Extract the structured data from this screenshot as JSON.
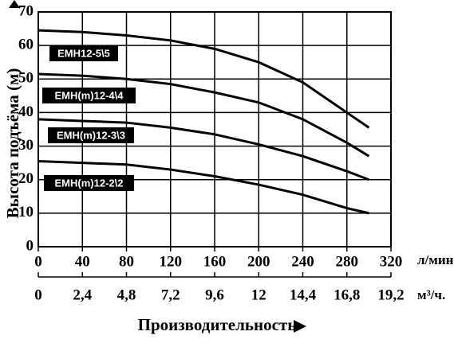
{
  "chart_data": {
    "type": "line",
    "ylabel": "Высота подъёма (м)",
    "xlabel": "Производительность",
    "x_unit": "л/мин.",
    "x2_unit": "м³/ч.",
    "x": [
      0,
      40,
      80,
      120,
      160,
      200,
      240,
      280,
      300
    ],
    "xlim": [
      0,
      320
    ],
    "xticks": [
      0,
      40,
      80,
      120,
      160,
      200,
      240,
      280,
      320
    ],
    "x2lim": [
      0,
      19.2
    ],
    "x2ticks": [
      0,
      {
        "value": 2.4,
        "label": "2,4"
      },
      {
        "value": 4.8,
        "label": "4,8"
      },
      {
        "value": 7.2,
        "label": "7,2"
      },
      {
        "value": 9.6,
        "label": "9,6"
      },
      12,
      {
        "value": 14.4,
        "label": "14,4"
      },
      {
        "value": 16.8,
        "label": "16,8"
      },
      {
        "value": 19.2,
        "label": "19,2"
      }
    ],
    "ylim": [
      0,
      70
    ],
    "yticks": [
      0,
      10,
      20,
      30,
      40,
      50,
      60,
      70
    ],
    "grid": true,
    "series": [
      {
        "name": "EMH12-5\\5",
        "color": "#000000",
        "values": [
          64.5,
          64,
          63,
          61.5,
          59,
          55,
          49,
          40,
          35.5
        ]
      },
      {
        "name": "EMH(m)12-4\\4",
        "color": "#000000",
        "values": [
          51.5,
          51,
          50,
          48.5,
          46,
          43,
          38,
          31,
          27
        ]
      },
      {
        "name": "EMH(m)12-3\\3",
        "color": "#000000",
        "values": [
          38,
          37.5,
          37,
          35.5,
          33.5,
          30.5,
          27,
          22.5,
          20
        ]
      },
      {
        "name": "EMH(m)12-2\\2",
        "color": "#000000",
        "values": [
          25.5,
          25,
          24.5,
          23,
          21,
          18.5,
          15.5,
          11.5,
          10
        ]
      }
    ]
  }
}
